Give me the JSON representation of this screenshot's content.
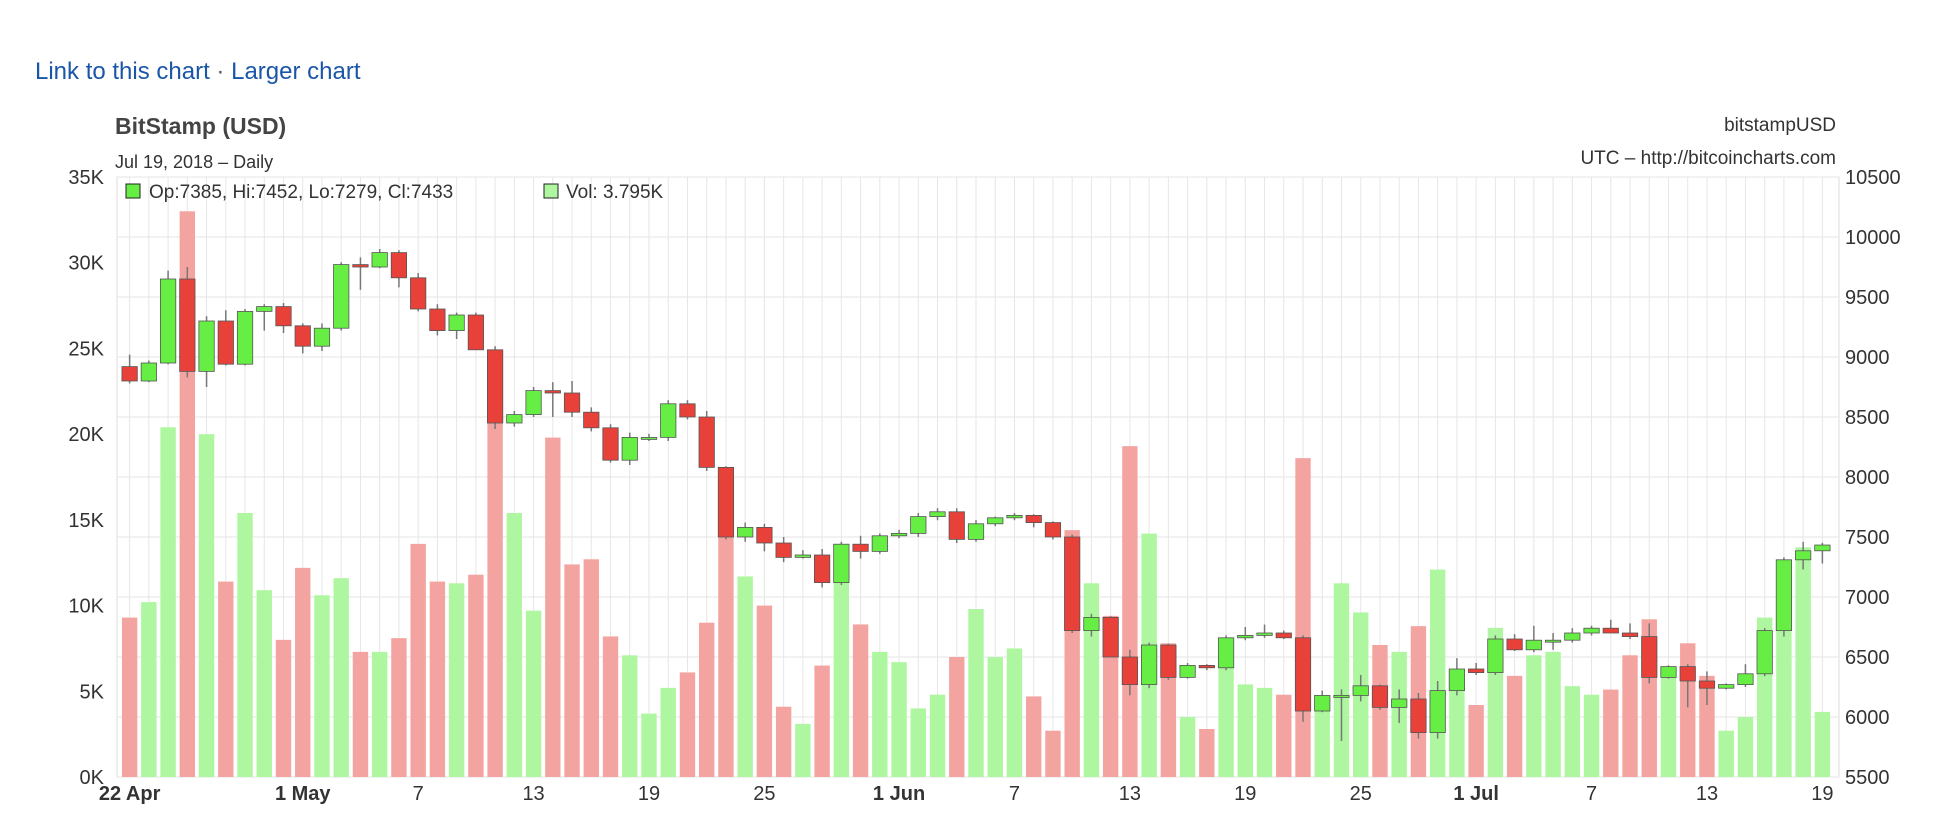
{
  "links": {
    "link_label": "Link to this chart",
    "separator": "·",
    "larger_label": "Larger chart"
  },
  "chart_data": {
    "type": "candlestick",
    "title": "BitStamp (USD)",
    "subtitle": "Jul 19, 2018 – Daily",
    "symbol": "bitstampUSD",
    "source": "UTC – http://bitcoincharts.com",
    "legend": {
      "price": "Op:7385, Hi:7452, Lo:7279, Cl:7433",
      "volume": "Vol: 3.795K"
    },
    "price_axis": {
      "side": "right",
      "range": [
        5500,
        10500
      ],
      "ticks": [
        "5500",
        "6000",
        "6500",
        "7000",
        "7500",
        "8000",
        "8500",
        "9000",
        "9500",
        "10000",
        "10500"
      ]
    },
    "volume_axis": {
      "side": "left",
      "range": [
        0,
        35000
      ],
      "ticks": [
        "0K",
        "5K",
        "10K",
        "15K",
        "20K",
        "25K",
        "30K",
        "35K"
      ]
    },
    "x_axis": {
      "ticks": [
        {
          "day": 0,
          "label": "22 Apr",
          "bold": true
        },
        {
          "day": 9,
          "label": "1 May",
          "bold": true
        },
        {
          "day": 15,
          "label": "7",
          "bold": false
        },
        {
          "day": 21,
          "label": "13",
          "bold": false
        },
        {
          "day": 27,
          "label": "19",
          "bold": false
        },
        {
          "day": 33,
          "label": "25",
          "bold": false
        },
        {
          "day": 40,
          "label": "1 Jun",
          "bold": true
        },
        {
          "day": 46,
          "label": "7",
          "bold": false
        },
        {
          "day": 52,
          "label": "13",
          "bold": false
        },
        {
          "day": 58,
          "label": "19",
          "bold": false
        },
        {
          "day": 64,
          "label": "25",
          "bold": false
        },
        {
          "day": 70,
          "label": "1 Jul",
          "bold": true
        },
        {
          "day": 76,
          "label": "7",
          "bold": false
        },
        {
          "day": 82,
          "label": "13",
          "bold": false
        },
        {
          "day": 88,
          "label": "19",
          "bold": false
        }
      ]
    },
    "grid": true,
    "colors": {
      "up": "#66ee44",
      "down": "#e8413a",
      "vol_up": "#aef7a0",
      "vol_down": "#f4a4a0",
      "grid": "#e6e6e6"
    },
    "candles": [
      {
        "o": 8920,
        "h": 9020,
        "l": 8780,
        "c": 8800
      },
      {
        "o": 8800,
        "h": 8970,
        "l": 8790,
        "c": 8950
      },
      {
        "o": 8950,
        "h": 9720,
        "l": 8940,
        "c": 9650
      },
      {
        "o": 9650,
        "h": 9750,
        "l": 8830,
        "c": 8880
      },
      {
        "o": 8880,
        "h": 9340,
        "l": 8750,
        "c": 9300
      },
      {
        "o": 9300,
        "h": 9390,
        "l": 8930,
        "c": 8940
      },
      {
        "o": 8940,
        "h": 9400,
        "l": 8930,
        "c": 9380
      },
      {
        "o": 9380,
        "h": 9440,
        "l": 9220,
        "c": 9420
      },
      {
        "o": 9420,
        "h": 9450,
        "l": 9200,
        "c": 9260
      },
      {
        "o": 9260,
        "h": 9280,
        "l": 9030,
        "c": 9090
      },
      {
        "o": 9090,
        "h": 9280,
        "l": 9050,
        "c": 9240
      },
      {
        "o": 9240,
        "h": 9790,
        "l": 9220,
        "c": 9770
      },
      {
        "o": 9770,
        "h": 9830,
        "l": 9560,
        "c": 9750
      },
      {
        "o": 9750,
        "h": 9900,
        "l": 9740,
        "c": 9870
      },
      {
        "o": 9870,
        "h": 9890,
        "l": 9580,
        "c": 9660
      },
      {
        "o": 9660,
        "h": 9700,
        "l": 9380,
        "c": 9400
      },
      {
        "o": 9400,
        "h": 9440,
        "l": 9180,
        "c": 9220
      },
      {
        "o": 9220,
        "h": 9370,
        "l": 9150,
        "c": 9350
      },
      {
        "o": 9350,
        "h": 9370,
        "l": 9060,
        "c": 9060
      },
      {
        "o": 9060,
        "h": 9090,
        "l": 8400,
        "c": 8450
      },
      {
        "o": 8450,
        "h": 8550,
        "l": 8420,
        "c": 8520
      },
      {
        "o": 8520,
        "h": 8750,
        "l": 8500,
        "c": 8720
      },
      {
        "o": 8720,
        "h": 8790,
        "l": 8500,
        "c": 8700
      },
      {
        "o": 8700,
        "h": 8800,
        "l": 8500,
        "c": 8540
      },
      {
        "o": 8540,
        "h": 8580,
        "l": 8380,
        "c": 8410
      },
      {
        "o": 8410,
        "h": 8440,
        "l": 8120,
        "c": 8140
      },
      {
        "o": 8140,
        "h": 8370,
        "l": 8100,
        "c": 8330
      },
      {
        "o": 8330,
        "h": 8360,
        "l": 8300,
        "c": 8330
      },
      {
        "o": 8330,
        "h": 8640,
        "l": 8300,
        "c": 8610
      },
      {
        "o": 8610,
        "h": 8640,
        "l": 8480,
        "c": 8500
      },
      {
        "o": 8500,
        "h": 8550,
        "l": 8050,
        "c": 8080
      },
      {
        "o": 8080,
        "h": 8090,
        "l": 7480,
        "c": 7500
      },
      {
        "o": 7500,
        "h": 7620,
        "l": 7460,
        "c": 7580
      },
      {
        "o": 7580,
        "h": 7610,
        "l": 7380,
        "c": 7450
      },
      {
        "o": 7450,
        "h": 7500,
        "l": 7290,
        "c": 7330
      },
      {
        "o": 7330,
        "h": 7390,
        "l": 7320,
        "c": 7350
      },
      {
        "o": 7350,
        "h": 7400,
        "l": 7080,
        "c": 7120
      },
      {
        "o": 7120,
        "h": 7460,
        "l": 7100,
        "c": 7440
      },
      {
        "o": 7440,
        "h": 7510,
        "l": 7320,
        "c": 7380
      },
      {
        "o": 7380,
        "h": 7530,
        "l": 7360,
        "c": 7510
      },
      {
        "o": 7510,
        "h": 7560,
        "l": 7490,
        "c": 7530
      },
      {
        "o": 7530,
        "h": 7700,
        "l": 7500,
        "c": 7670
      },
      {
        "o": 7670,
        "h": 7740,
        "l": 7640,
        "c": 7710
      },
      {
        "o": 7710,
        "h": 7740,
        "l": 7450,
        "c": 7480
      },
      {
        "o": 7480,
        "h": 7640,
        "l": 7460,
        "c": 7610
      },
      {
        "o": 7610,
        "h": 7670,
        "l": 7590,
        "c": 7660
      },
      {
        "o": 7660,
        "h": 7700,
        "l": 7640,
        "c": 7680
      },
      {
        "o": 7680,
        "h": 7690,
        "l": 7580,
        "c": 7620
      },
      {
        "o": 7620,
        "h": 7630,
        "l": 7480,
        "c": 7500
      },
      {
        "o": 7500,
        "h": 7520,
        "l": 6700,
        "c": 6720
      },
      {
        "o": 6720,
        "h": 6860,
        "l": 6670,
        "c": 6830
      },
      {
        "o": 6830,
        "h": 6840,
        "l": 6500,
        "c": 6500
      },
      {
        "o": 6500,
        "h": 6560,
        "l": 6180,
        "c": 6270
      },
      {
        "o": 6270,
        "h": 6620,
        "l": 6240,
        "c": 6600
      },
      {
        "o": 6600,
        "h": 6610,
        "l": 6310,
        "c": 6330
      },
      {
        "o": 6330,
        "h": 6450,
        "l": 6320,
        "c": 6430
      },
      {
        "o": 6430,
        "h": 6440,
        "l": 6390,
        "c": 6410
      },
      {
        "o": 6410,
        "h": 6680,
        "l": 6390,
        "c": 6660
      },
      {
        "o": 6660,
        "h": 6750,
        "l": 6640,
        "c": 6680
      },
      {
        "o": 6680,
        "h": 6770,
        "l": 6660,
        "c": 6700
      },
      {
        "o": 6700,
        "h": 6720,
        "l": 6650,
        "c": 6660
      },
      {
        "o": 6660,
        "h": 6680,
        "l": 5960,
        "c": 6050
      },
      {
        "o": 6050,
        "h": 6220,
        "l": 6040,
        "c": 6180
      },
      {
        "o": 6180,
        "h": 6230,
        "l": 5800,
        "c": 6180
      },
      {
        "o": 6180,
        "h": 6350,
        "l": 6130,
        "c": 6260
      },
      {
        "o": 6260,
        "h": 6270,
        "l": 6060,
        "c": 6080
      },
      {
        "o": 6080,
        "h": 6230,
        "l": 5950,
        "c": 6150
      },
      {
        "o": 6150,
        "h": 6200,
        "l": 5820,
        "c": 5870
      },
      {
        "o": 5870,
        "h": 6300,
        "l": 5820,
        "c": 6220
      },
      {
        "o": 6220,
        "h": 6490,
        "l": 6180,
        "c": 6400
      },
      {
        "o": 6400,
        "h": 6450,
        "l": 6350,
        "c": 6370
      },
      {
        "o": 6370,
        "h": 6680,
        "l": 6350,
        "c": 6650
      },
      {
        "o": 6650,
        "h": 6690,
        "l": 6550,
        "c": 6560
      },
      {
        "o": 6560,
        "h": 6760,
        "l": 6540,
        "c": 6640
      },
      {
        "o": 6640,
        "h": 6700,
        "l": 6560,
        "c": 6640
      },
      {
        "o": 6640,
        "h": 6740,
        "l": 6620,
        "c": 6700
      },
      {
        "o": 6700,
        "h": 6760,
        "l": 6680,
        "c": 6740
      },
      {
        "o": 6740,
        "h": 6810,
        "l": 6710,
        "c": 6700
      },
      {
        "o": 6700,
        "h": 6780,
        "l": 6650,
        "c": 6670
      },
      {
        "o": 6670,
        "h": 6780,
        "l": 6280,
        "c": 6330
      },
      {
        "o": 6330,
        "h": 6430,
        "l": 6320,
        "c": 6420
      },
      {
        "o": 6420,
        "h": 6440,
        "l": 6080,
        "c": 6300
      },
      {
        "o": 6300,
        "h": 6380,
        "l": 6100,
        "c": 6240
      },
      {
        "o": 6240,
        "h": 6280,
        "l": 6230,
        "c": 6270
      },
      {
        "o": 6270,
        "h": 6440,
        "l": 6250,
        "c": 6360
      },
      {
        "o": 6360,
        "h": 6740,
        "l": 6340,
        "c": 6720
      },
      {
        "o": 6720,
        "h": 7330,
        "l": 6670,
        "c": 7310
      },
      {
        "o": 7310,
        "h": 7460,
        "l": 7230,
        "c": 7385
      },
      {
        "o": 7385,
        "h": 7452,
        "l": 7279,
        "c": 7433
      }
    ],
    "volumes": [
      9300,
      10200,
      20400,
      33000,
      20000,
      11400,
      15400,
      10900,
      8000,
      12200,
      10600,
      11600,
      7300,
      7300,
      8100,
      13600,
      11400,
      11300,
      11800,
      21700,
      15400,
      9700,
      19800,
      12400,
      12700,
      8200,
      7100,
      3700,
      5200,
      6100,
      9000,
      14700,
      11700,
      10000,
      4100,
      3100,
      6500,
      11800,
      8900,
      7300,
      6700,
      4000,
      4800,
      7000,
      9800,
      7000,
      7500,
      4700,
      2700,
      14400,
      11300,
      9400,
      19300,
      14200,
      7800,
      3500,
      2800,
      8000,
      5400,
      5200,
      4800,
      18600,
      4600,
      11300,
      9600,
      7700,
      7300,
      8800,
      12100,
      5800,
      4200,
      8700,
      5900,
      7100,
      7300,
      5300,
      4800,
      5100,
      7100,
      9200,
      5800,
      7800,
      5900,
      2700,
      3500,
      9300,
      12100,
      13400,
      3800
    ]
  }
}
